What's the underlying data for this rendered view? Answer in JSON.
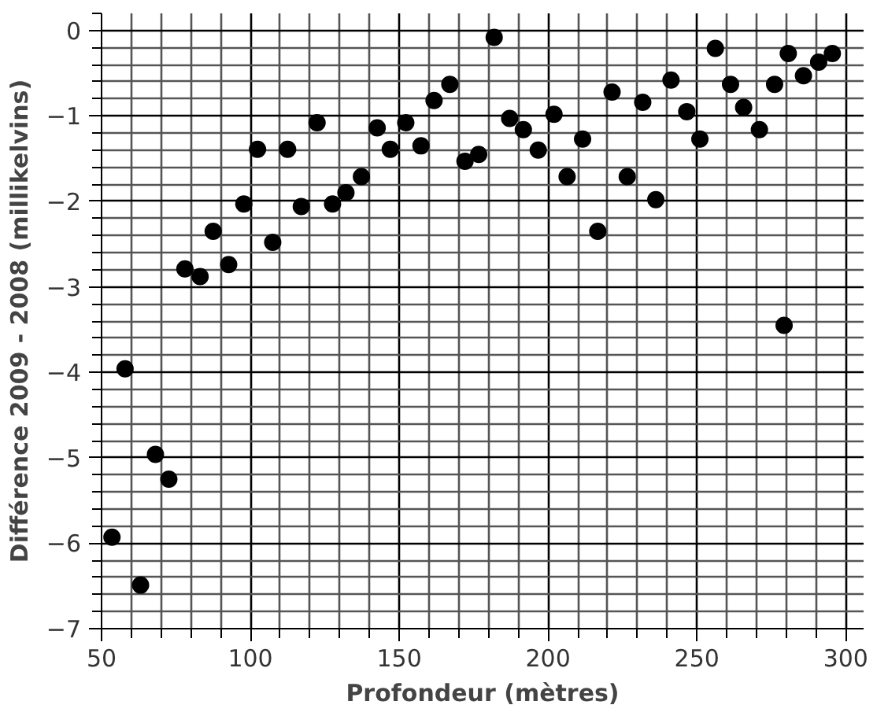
{
  "chart_data": {
    "type": "scatter",
    "xlabel": "Profondeur (mètres)",
    "ylabel": "Différence 2009 - 2008 (millikelvins)",
    "x": [
      53.5,
      57.9,
      63.1,
      68.1,
      72.6,
      78.0,
      83.1,
      87.5,
      92.7,
      97.8,
      102.4,
      107.5,
      112.5,
      117.1,
      122.4,
      127.6,
      132.1,
      137.3,
      142.6,
      147.0,
      152.2,
      157.3,
      161.7,
      167.0,
      172.1,
      176.7,
      181.9,
      187.1,
      191.7,
      196.7,
      202.0,
      206.4,
      211.6,
      216.7,
      221.5,
      226.6,
      231.8,
      236.2,
      241.3,
      246.6,
      251.0,
      256.2,
      261.3,
      265.7,
      271.0,
      276.1,
      279.3,
      280.7,
      285.8,
      290.9,
      295.5
    ],
    "series": [
      {
        "color": "#000000",
        "values": [
          -5.93,
          -3.96,
          -6.49,
          -4.96,
          -5.25,
          -2.79,
          -2.88,
          -2.35,
          -2.74,
          -2.03,
          -1.39,
          -2.48,
          -1.39,
          -2.06,
          -1.08,
          -2.03,
          -1.9,
          -1.71,
          -1.14,
          -1.39,
          -1.08,
          -1.35,
          -0.82,
          -0.63,
          -1.53,
          -1.45,
          -0.08,
          -1.03,
          -1.16,
          -1.4,
          -0.98,
          -1.71,
          -1.27,
          -2.35,
          -0.72,
          -1.71,
          -0.84,
          -1.98,
          -0.58,
          -0.95,
          -1.27,
          -0.21,
          -0.63,
          -0.9,
          -1.16,
          -0.63,
          -3.45,
          -0.27,
          -0.53,
          -0.37,
          -0.27
        ]
      }
    ],
    "xlim": [
      50,
      306
    ],
    "ylim": [
      -7,
      0.2
    ],
    "xticks": [
      50,
      100,
      150,
      200,
      250,
      300
    ],
    "yticks": [
      {
        "value": -7,
        "label": "−7"
      },
      {
        "value": -6,
        "label": "−6"
      },
      {
        "value": -5,
        "label": "−5"
      },
      {
        "value": -4,
        "label": "−4"
      },
      {
        "value": -3,
        "label": "−3"
      },
      {
        "value": -2,
        "label": "−2"
      },
      {
        "value": -1,
        "label": "−1"
      },
      0
    ],
    "grid": true,
    "marker": "circle"
  }
}
